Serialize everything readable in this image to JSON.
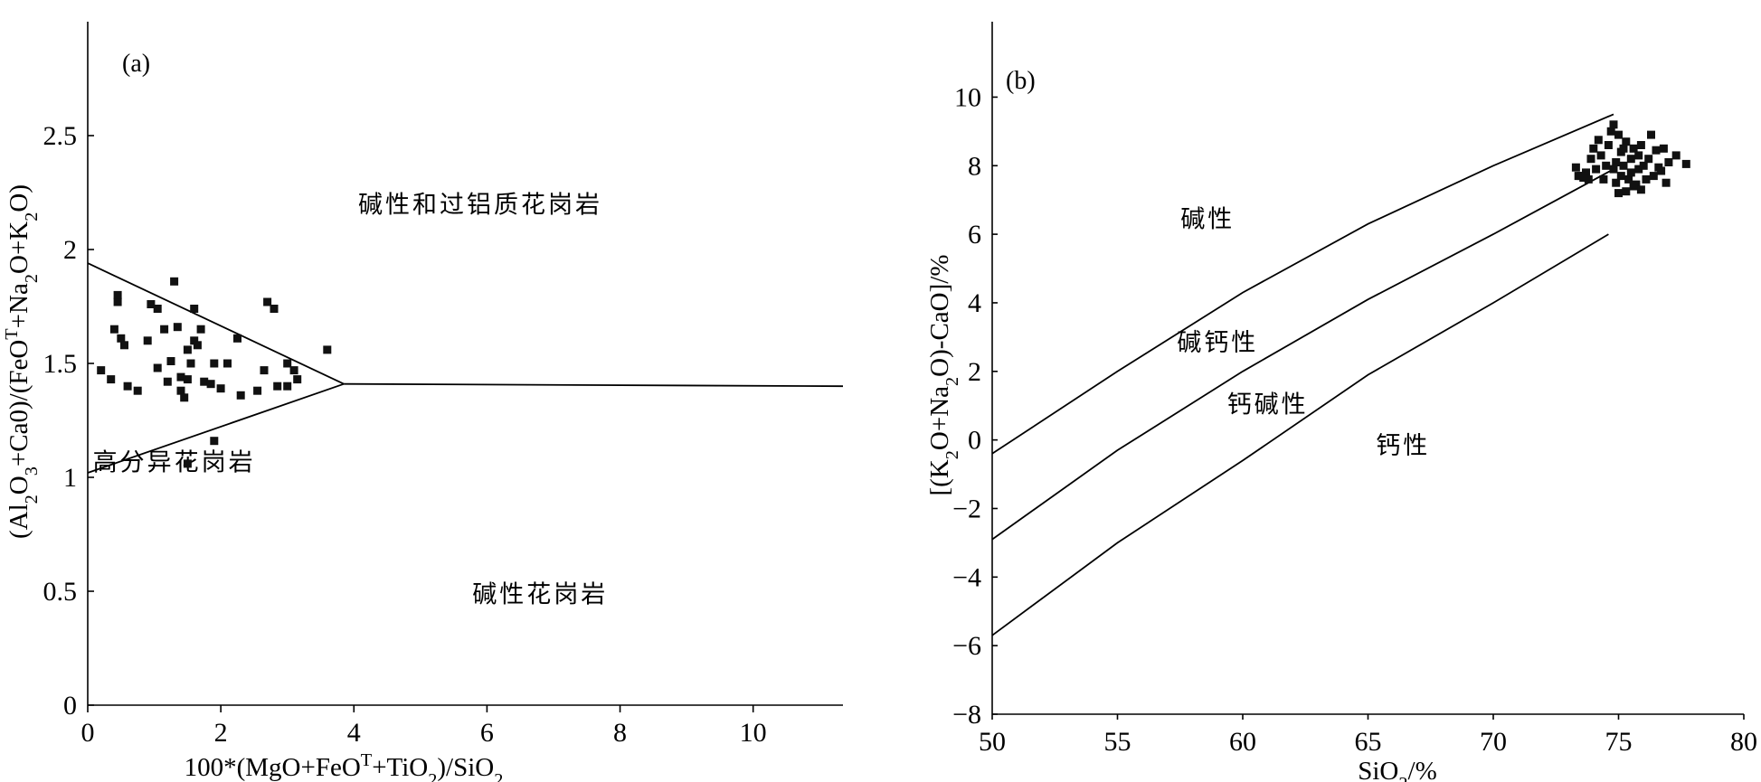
{
  "chart_data": [
    {
      "panel_label": "(a)",
      "type": "scatter",
      "xlabel_parts": [
        "100*(MgO+FeO",
        "T",
        "+TiO",
        "2",
        ")/SiO",
        "2"
      ],
      "ylabel_parts": [
        "(Al",
        "2",
        "O",
        "3",
        "+Ca0)/(FeO",
        "T",
        "+Na",
        "2",
        "O+K",
        "2",
        "O)"
      ],
      "xlim": [
        0,
        11.35
      ],
      "ylim": [
        0,
        3.0
      ],
      "xticks": [
        0,
        2,
        4,
        6,
        8,
        10
      ],
      "xtick_labels": [
        "0",
        "2",
        "4",
        "6",
        "8",
        "10"
      ],
      "yticks": [
        0,
        0.5,
        1,
        1.5,
        2,
        2.5
      ],
      "ytick_labels": [
        "0",
        "0.5",
        "1",
        "1.5",
        "2",
        "2.5"
      ],
      "regions": [
        {
          "label": "碱性和过铝质花岗岩",
          "x": 5.9,
          "y": 2.16
        },
        {
          "label": "高分异花岗岩",
          "x": 1.3,
          "y": 1.03
        },
        {
          "label": "碱性花岗岩",
          "x": 6.8,
          "y": 0.45
        }
      ],
      "boundaries": [
        {
          "points": [
            [
              0,
              1.94
            ],
            [
              3.85,
              1.41
            ]
          ]
        },
        {
          "points": [
            [
              0,
              1.02
            ],
            [
              3.85,
              1.41
            ]
          ]
        },
        {
          "points": [
            [
              3.85,
              1.41
            ],
            [
              11.35,
              1.4
            ]
          ]
        }
      ],
      "points": [
        [
          0.2,
          1.47
        ],
        [
          0.35,
          1.43
        ],
        [
          0.4,
          1.65
        ],
        [
          0.45,
          1.77
        ],
        [
          0.45,
          1.8
        ],
        [
          0.5,
          1.61
        ],
        [
          0.55,
          1.58
        ],
        [
          0.6,
          1.4
        ],
        [
          0.75,
          1.38
        ],
        [
          0.9,
          1.6
        ],
        [
          0.95,
          1.76
        ],
        [
          1.05,
          1.74
        ],
        [
          1.05,
          1.48
        ],
        [
          1.15,
          1.65
        ],
        [
          1.2,
          1.42
        ],
        [
          1.25,
          1.51
        ],
        [
          1.3,
          1.86
        ],
        [
          1.35,
          1.66
        ],
        [
          1.4,
          1.44
        ],
        [
          1.4,
          1.38
        ],
        [
          1.45,
          1.35
        ],
        [
          1.5,
          1.56
        ],
        [
          1.5,
          1.43
        ],
        [
          1.55,
          1.5
        ],
        [
          1.6,
          1.6
        ],
        [
          1.6,
          1.74
        ],
        [
          1.65,
          1.58
        ],
        [
          1.7,
          1.65
        ],
        [
          1.75,
          1.42
        ],
        [
          1.85,
          1.41
        ],
        [
          1.9,
          1.5
        ],
        [
          2.0,
          1.39
        ],
        [
          2.1,
          1.5
        ],
        [
          2.25,
          1.61
        ],
        [
          2.3,
          1.36
        ],
        [
          2.55,
          1.38
        ],
        [
          2.65,
          1.47
        ],
        [
          2.7,
          1.77
        ],
        [
          2.8,
          1.74
        ],
        [
          2.85,
          1.4
        ],
        [
          3.0,
          1.4
        ],
        [
          3.0,
          1.5
        ],
        [
          3.1,
          1.47
        ],
        [
          3.15,
          1.43
        ],
        [
          3.6,
          1.56
        ],
        [
          1.5,
          1.06
        ],
        [
          1.9,
          1.16
        ]
      ]
    },
    {
      "panel_label": "(b)",
      "type": "scatter",
      "xlabel_parts": [
        "SiO",
        "2",
        "/%"
      ],
      "ylabel_parts": [
        "[(K",
        "2",
        "O+Na",
        "2",
        "O)-CaO]/%"
      ],
      "xlim": [
        50,
        80
      ],
      "ylim": [
        -8,
        12.2
      ],
      "xticks": [
        50,
        55,
        60,
        65,
        70,
        75,
        80
      ],
      "xtick_labels": [
        "50",
        "55",
        "60",
        "65",
        "70",
        "75",
        "80"
      ],
      "yticks": [
        -8,
        -6,
        -4,
        -2,
        0,
        2,
        4,
        6,
        8,
        10
      ],
      "ytick_labels": [
        "−8",
        "−6",
        "−4",
        "−2",
        "0",
        "2",
        "4",
        "6",
        "8",
        "10"
      ],
      "regions": [
        {
          "label": "碱性",
          "x": 58.6,
          "y": 6.2
        },
        {
          "label": "碱钙性",
          "x": 59.0,
          "y": 2.6
        },
        {
          "label": "钙碱性",
          "x": 61.0,
          "y": 0.8
        },
        {
          "label": "钙性",
          "x": 66.4,
          "y": -0.4
        }
      ],
      "boundaries": [
        {
          "points": [
            [
              50,
              -0.4
            ],
            [
              55,
              2.0
            ],
            [
              60,
              4.3
            ],
            [
              65,
              6.3
            ],
            [
              70,
              8.0
            ],
            [
              74.8,
              9.5
            ]
          ]
        },
        {
          "points": [
            [
              50,
              -2.9
            ],
            [
              55,
              -0.3
            ],
            [
              60,
              2.0
            ],
            [
              65,
              4.1
            ],
            [
              70,
              6.0
            ],
            [
              74.8,
              7.9
            ]
          ]
        },
        {
          "points": [
            [
              50,
              -5.7
            ],
            [
              55,
              -3.0
            ],
            [
              60,
              -0.6
            ],
            [
              65,
              1.9
            ],
            [
              70,
              4.0
            ],
            [
              74.6,
              6.0
            ]
          ]
        }
      ],
      "points": [
        [
          73.3,
          7.95
        ],
        [
          73.4,
          7.7
        ],
        [
          73.6,
          7.65
        ],
        [
          73.7,
          7.8
        ],
        [
          73.8,
          7.6
        ],
        [
          73.9,
          8.2
        ],
        [
          74.0,
          8.5
        ],
        [
          74.1,
          7.9
        ],
        [
          74.2,
          8.75
        ],
        [
          74.3,
          8.3
        ],
        [
          74.4,
          7.6
        ],
        [
          74.5,
          8.0
        ],
        [
          74.6,
          8.6
        ],
        [
          74.7,
          9.0
        ],
        [
          74.8,
          9.2
        ],
        [
          74.8,
          7.9
        ],
        [
          74.9,
          7.5
        ],
        [
          74.9,
          8.1
        ],
        [
          75.0,
          7.2
        ],
        [
          75.0,
          8.9
        ],
        [
          75.1,
          7.7
        ],
        [
          75.1,
          8.4
        ],
        [
          75.2,
          8.0
        ],
        [
          75.3,
          7.25
        ],
        [
          75.3,
          8.7
        ],
        [
          75.4,
          7.6
        ],
        [
          75.5,
          8.2
        ],
        [
          75.5,
          7.8
        ],
        [
          75.6,
          8.5
        ],
        [
          75.7,
          7.45
        ],
        [
          75.8,
          7.9
        ],
        [
          75.8,
          8.3
        ],
        [
          75.9,
          7.3
        ],
        [
          75.9,
          8.6
        ],
        [
          76.0,
          8.0
        ],
        [
          76.1,
          7.6
        ],
        [
          76.2,
          8.2
        ],
        [
          76.3,
          8.9
        ],
        [
          76.4,
          7.7
        ],
        [
          76.5,
          8.45
        ],
        [
          76.6,
          7.95
        ],
        [
          76.7,
          7.85
        ],
        [
          76.8,
          8.5
        ],
        [
          76.9,
          7.5
        ],
        [
          77.0,
          8.1
        ],
        [
          77.3,
          8.3
        ],
        [
          77.7,
          8.05
        ],
        [
          73.5,
          7.7
        ],
        [
          75.2,
          8.5
        ],
        [
          75.6,
          7.4
        ]
      ]
    }
  ]
}
